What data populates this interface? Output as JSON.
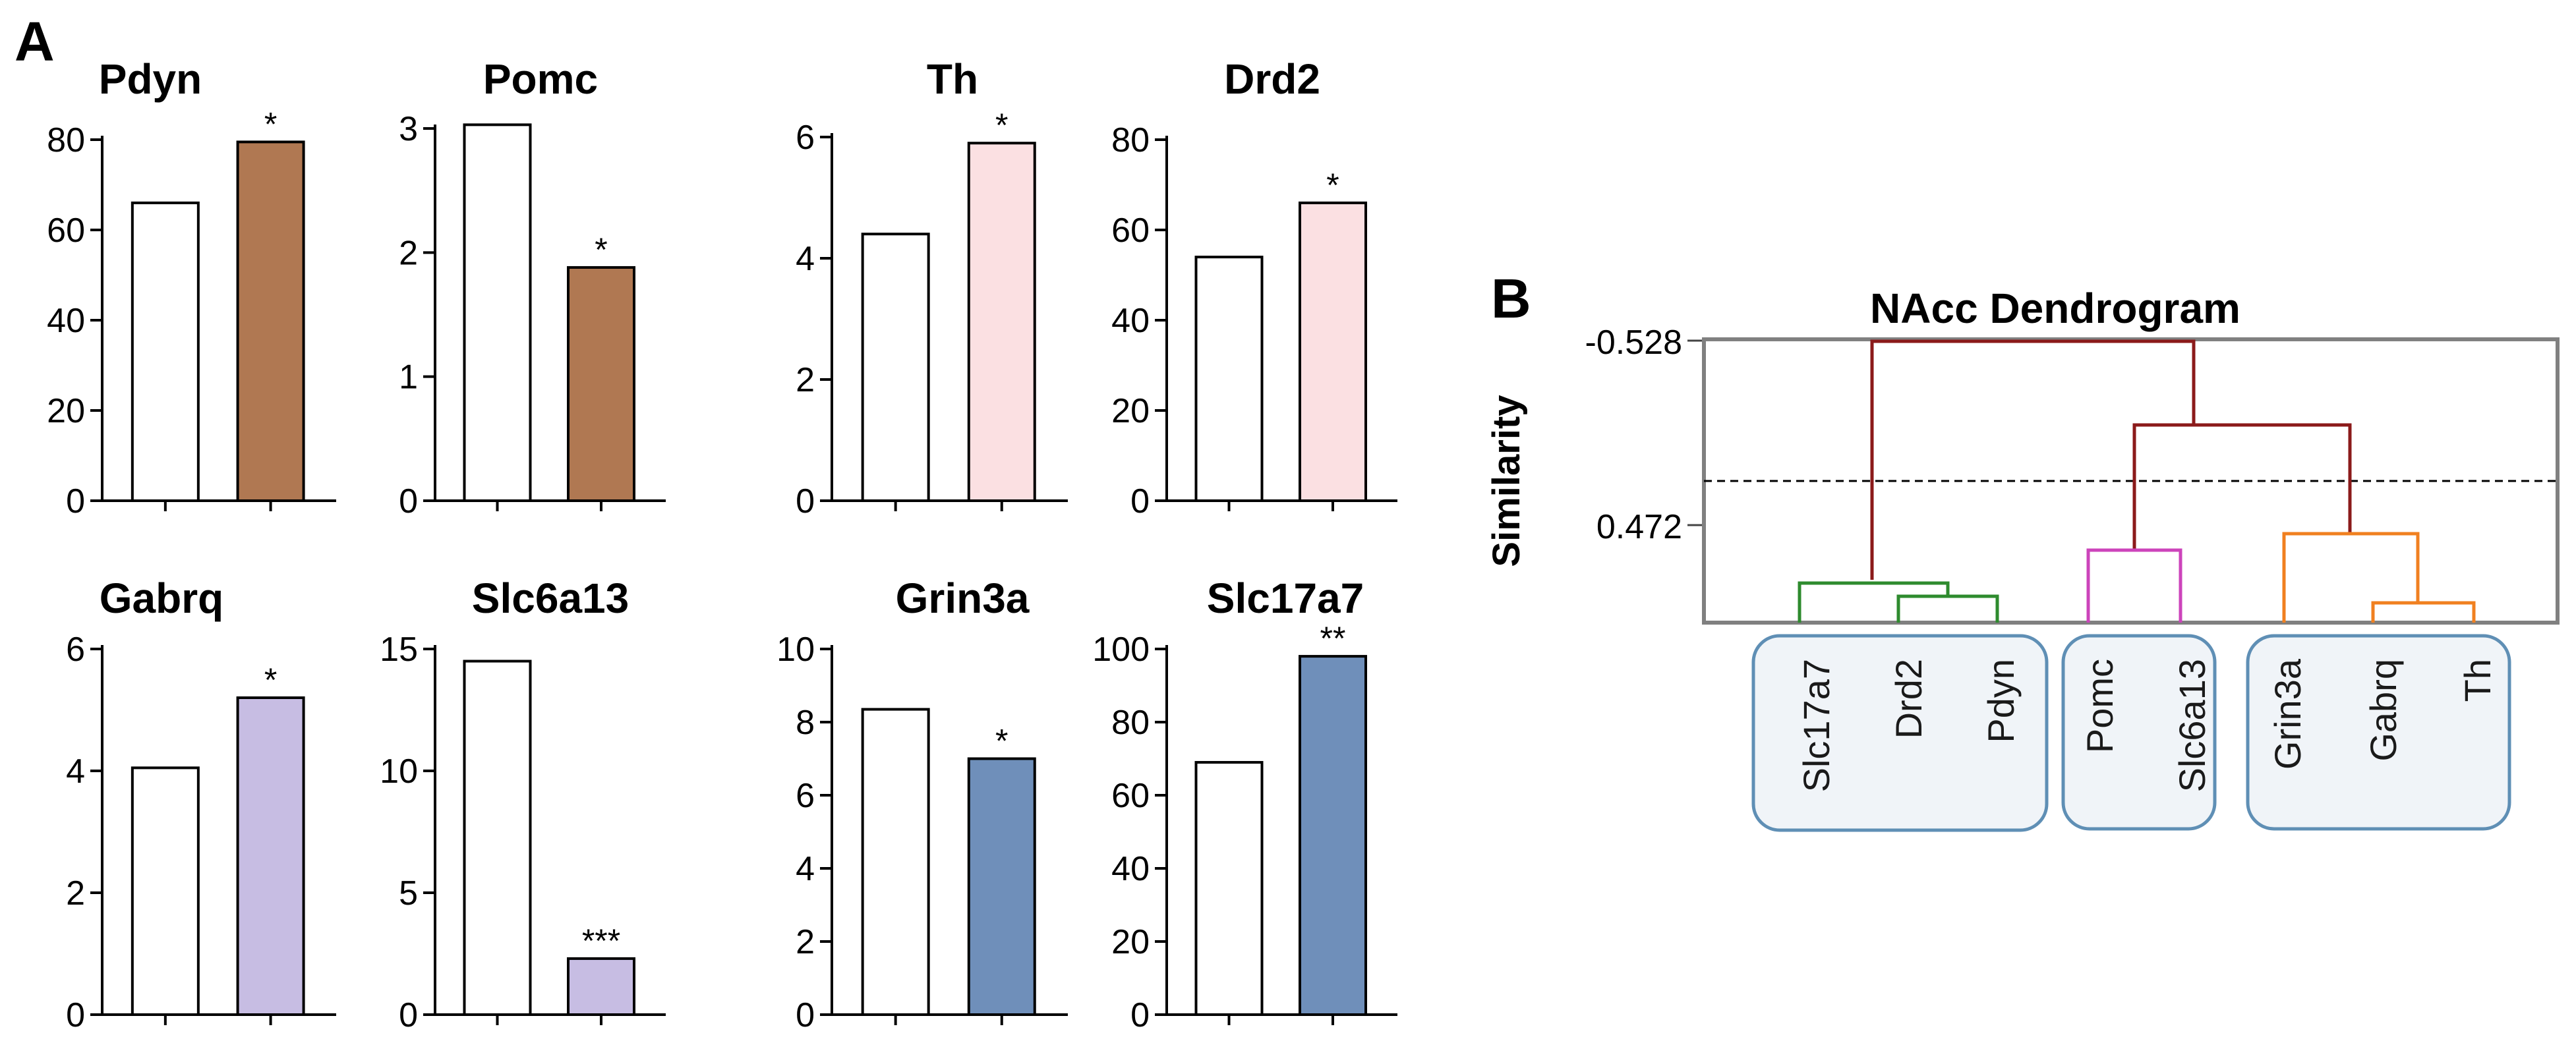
{
  "panel_a_letter": "A",
  "panel_b_letter": "B",
  "chart_data": [
    {
      "type": "bar",
      "title": "Pdyn",
      "categories": [
        "",
        ""
      ],
      "values": [
        66,
        79.5
      ],
      "colors": [
        "#ffffff",
        "#b07852"
      ],
      "ylim": [
        0,
        80
      ],
      "yticks": [
        0,
        20,
        40,
        60,
        80
      ],
      "significance": [
        "",
        "*"
      ]
    },
    {
      "type": "bar",
      "title": "Pomc",
      "categories": [
        "",
        ""
      ],
      "values": [
        3.03,
        1.88
      ],
      "colors": [
        "#ffffff",
        "#b07852"
      ],
      "ylim": [
        0,
        3
      ],
      "yticks": [
        0,
        1,
        2,
        3
      ],
      "significance": [
        "",
        "*"
      ]
    },
    {
      "type": "bar",
      "title": "Th",
      "categories": [
        "",
        ""
      ],
      "values": [
        4.4,
        5.9
      ],
      "colors": [
        "#ffffff",
        "#fbe0e2"
      ],
      "ylim": [
        0,
        6
      ],
      "yticks": [
        0,
        2,
        4,
        6
      ],
      "significance": [
        "",
        "*"
      ]
    },
    {
      "type": "bar",
      "title": "Drd2",
      "categories": [
        "",
        ""
      ],
      "values": [
        54,
        66
      ],
      "colors": [
        "#ffffff",
        "#fbe0e2"
      ],
      "ylim": [
        0,
        80
      ],
      "yticks": [
        0,
        20,
        40,
        60,
        80
      ],
      "significance": [
        "",
        "*"
      ]
    },
    {
      "type": "bar",
      "title": "Gabrq",
      "categories": [
        "",
        ""
      ],
      "values": [
        4.05,
        5.2
      ],
      "colors": [
        "#ffffff",
        "#c7bde3"
      ],
      "ylim": [
        0,
        6
      ],
      "yticks": [
        0,
        2,
        4,
        6
      ],
      "significance": [
        "",
        "*"
      ]
    },
    {
      "type": "bar",
      "title": "Slc6a13",
      "categories": [
        "",
        ""
      ],
      "values": [
        14.5,
        2.3
      ],
      "colors": [
        "#ffffff",
        "#c7bde3"
      ],
      "ylim": [
        0,
        15
      ],
      "yticks": [
        0,
        5,
        10,
        15
      ],
      "significance": [
        "",
        "***"
      ]
    },
    {
      "type": "bar",
      "title": "Grin3a",
      "categories": [
        "",
        ""
      ],
      "values": [
        8.35,
        7.0
      ],
      "colors": [
        "#ffffff",
        "#6f8fba"
      ],
      "ylim": [
        0,
        10
      ],
      "yticks": [
        0,
        2,
        4,
        6,
        8,
        10
      ],
      "significance": [
        "",
        "*"
      ]
    },
    {
      "type": "bar",
      "title": "Slc17a7",
      "categories": [
        "",
        ""
      ],
      "values": [
        69,
        98
      ],
      "colors": [
        "#ffffff",
        "#6f8fba"
      ],
      "ylim": [
        0,
        100
      ],
      "yticks": [
        0,
        20,
        40,
        60,
        80,
        100
      ],
      "significance": [
        "",
        "**"
      ]
    },
    {
      "type": "dendrogram",
      "title": "NAcc Dendrogram",
      "ylabel": "Similarity",
      "yticks": [
        "-0.528",
        "0.472"
      ],
      "threshold_line": "dashed",
      "clusters": [
        {
          "leaves": [
            "Slc17a7",
            "Drd2",
            "Pdyn"
          ],
          "color": "#2e8b2e"
        },
        {
          "leaves": [
            "Pomc",
            "Slc6a13"
          ],
          "color": "#cc44bb"
        },
        {
          "leaves": [
            "Grin3a",
            "Gabrq",
            "Th"
          ],
          "color": "#f08020"
        }
      ],
      "link_color": "#8b1a1a",
      "box_color": "#5f8fb5",
      "box_fill": "#f0f4f8"
    }
  ]
}
